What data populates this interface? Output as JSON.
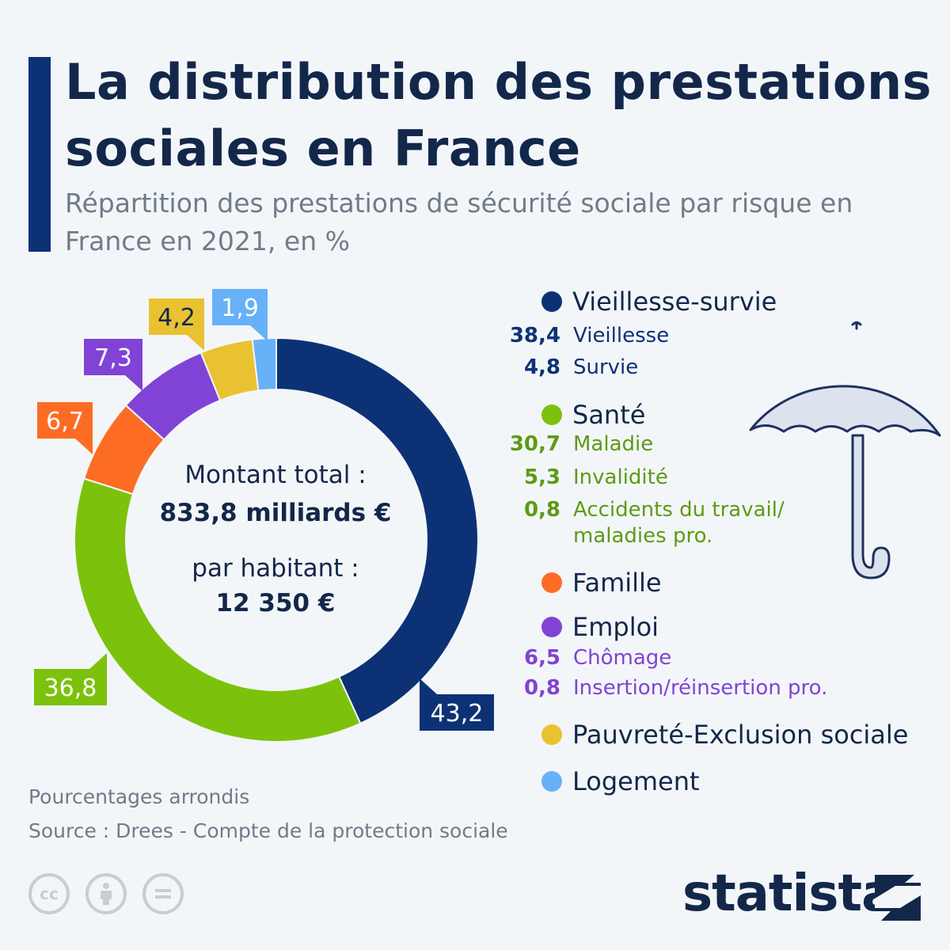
{
  "header": {
    "title": "La distribution des prestations sociales en France",
    "subtitle": "Répartition des prestations de sécurité sociale par risque en France en 2021, en %"
  },
  "center": {
    "total_label": "Montant total :",
    "total_value": "833,8 milliards €",
    "per_capita_label": "par habitant :",
    "per_capita_value": "12 350 €"
  },
  "chart_data": {
    "type": "pie",
    "title": "La distribution des prestations sociales en France",
    "subtitle": "Répartition des prestations de sécurité sociale par risque en France en 2021, en %",
    "series": [
      {
        "name": "Vieillesse-survie",
        "value": 43.2,
        "label": "43,2",
        "color": "#0c3275"
      },
      {
        "name": "Santé",
        "value": 36.8,
        "label": "36,8",
        "color": "#7cc20c"
      },
      {
        "name": "Famille",
        "value": 6.7,
        "label": "6,7",
        "color": "#fd6c25"
      },
      {
        "name": "Emploi",
        "value": 7.3,
        "label": "7,3",
        "color": "#8143d6"
      },
      {
        "name": "Pauvreté-Exclusion sociale",
        "value": 4.2,
        "label": "4,2",
        "color": "#e9c231"
      },
      {
        "name": "Logement",
        "value": 1.9,
        "label": "1,9",
        "color": "#66b1f7"
      }
    ],
    "legend": [
      {
        "name": "Vieillesse-survie",
        "color": "#0c3275",
        "items": [
          {
            "value": "38,4",
            "label": "Vieillesse"
          },
          {
            "value": "4,8",
            "label": "Survie"
          }
        ]
      },
      {
        "name": "Santé",
        "color": "#7cc20c",
        "items": [
          {
            "value": "30,7",
            "label": "Maladie"
          },
          {
            "value": "5,3",
            "label": "Invalidité"
          },
          {
            "value": "0,8",
            "label": "Accidents du travail/",
            "label2": "maladies pro."
          }
        ]
      },
      {
        "name": "Famille",
        "color": "#fd6c25",
        "items": []
      },
      {
        "name": "Emploi",
        "color": "#8143d6",
        "items": [
          {
            "value": "6,5",
            "label": "Chômage"
          },
          {
            "value": "0,8",
            "label": "Insertion/réinsertion pro."
          }
        ]
      },
      {
        "name": "Pauvreté-Exclusion sociale",
        "color": "#e9c231",
        "items": []
      },
      {
        "name": "Logement",
        "color": "#66b1f7",
        "items": []
      }
    ],
    "legend_placement": "right"
  },
  "colors": {
    "Vieillesse-survie_text": "#0c3275",
    "Santé_text": "#5e9a14",
    "Emploi_text": "#8143d6"
  },
  "footer": {
    "note": "Pourcentages arrondis",
    "source": "Source : Drees - Compte de la protection sociale",
    "brand": "statista"
  },
  "icons": {
    "license": [
      "cc-icon",
      "attribution-icon",
      "no-derivatives-icon"
    ],
    "illustration": "umbrella-icon",
    "brand_logo": "statista-logo-icon"
  }
}
